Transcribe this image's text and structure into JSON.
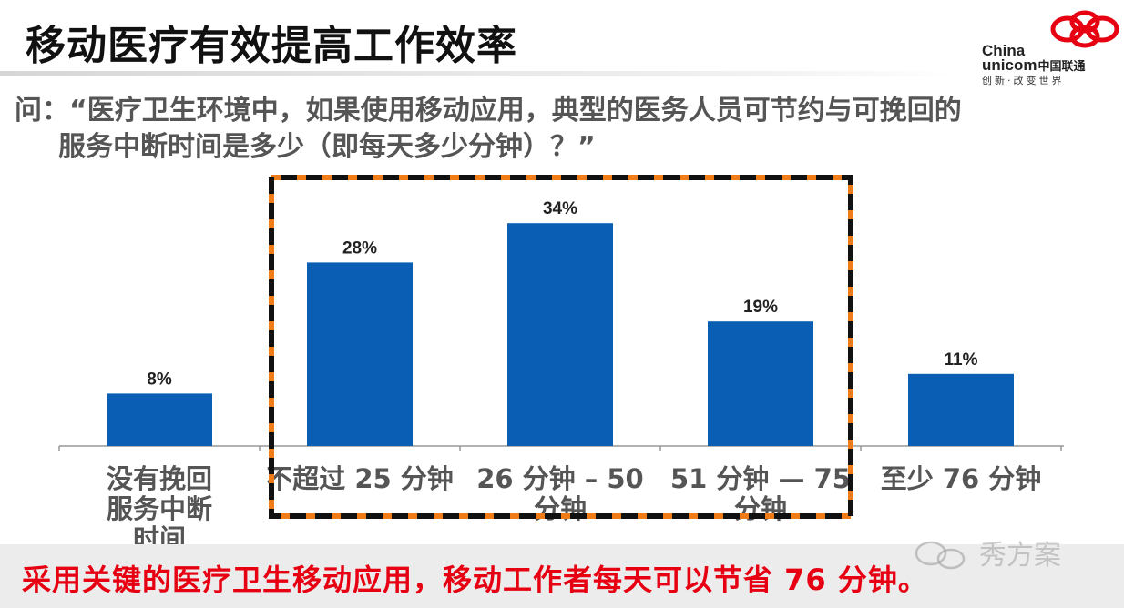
{
  "slide": {
    "title": "移动医疗有效提高工作效率",
    "question_line1": "问：“医疗卫生环境中，如果使用移动应用，典型的医务人员可节约与可挽回的",
    "question_line2": "服务中断时间是多少（即每天多少分钟）？”",
    "conclusion": "采用关键的医疗卫生移动应用，移动工作者每天可以节省 76 分钟。"
  },
  "logo": {
    "line1": "China",
    "line2": "unicom",
    "line2_cn": "中国联通",
    "slogan": "创新·改变世界",
    "knot_icon": "china-unicom-knot-icon",
    "color": "#e60012"
  },
  "watermark": {
    "icon": "wechat-icon",
    "text": "秀方案"
  },
  "chart_data": {
    "type": "bar",
    "categories": [
      "没有挽回服务中断时间",
      "不超过 25 分钟",
      "26 分钟 – 50 分钟",
      "51 分钟 — 75 分钟",
      "至少 76 分钟"
    ],
    "category_lines": [
      [
        "没有挽回",
        "服务中断",
        "时间"
      ],
      [
        "不超过 25 分钟"
      ],
      [
        "26 分钟 – 50",
        "分钟"
      ],
      [
        "51 分钟 — 75",
        "分钟"
      ],
      [
        "至少 76 分钟"
      ]
    ],
    "values": [
      8,
      28,
      34,
      19,
      11
    ],
    "value_labels": [
      "8%",
      "28%",
      "34%",
      "19%",
      "11%"
    ],
    "ylim": [
      0,
      40
    ],
    "bar_color": "#0a5fb4",
    "highlight": {
      "categories": [
        1,
        2,
        3
      ],
      "border_colors": [
        "#f07c18",
        "#111111"
      ]
    },
    "grid": false,
    "legend": "none"
  }
}
